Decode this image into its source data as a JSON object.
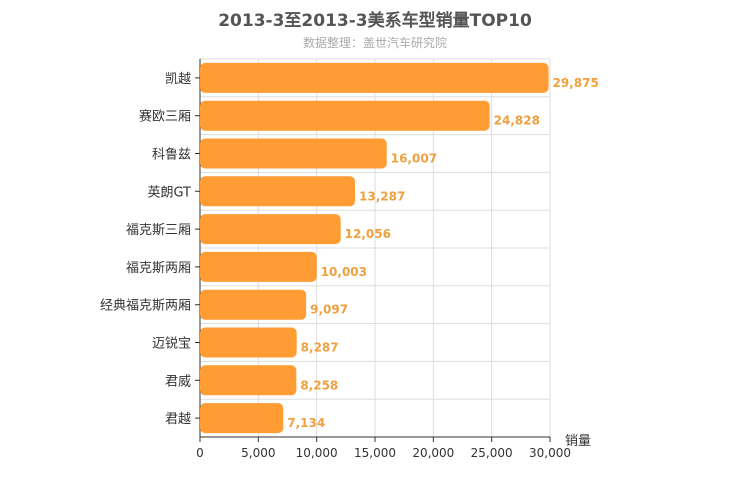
{
  "chart_data": {
    "type": "bar",
    "orientation": "horizontal",
    "title": "2013-3至2013-3美系车型销量TOP10",
    "subtitle": "数据整理：盖世汽车研究院",
    "xlabel": "销量",
    "ylabel": "",
    "xlim": [
      0,
      30000
    ],
    "xticks": [
      "0",
      "5,000",
      "10,000",
      "15,000",
      "20,000",
      "25,000",
      "30,000"
    ],
    "grid": true,
    "bar_color": "#ff9c33",
    "label_color": "#f0a040",
    "categories": [
      "凯越",
      "赛欧三厢",
      "科鲁兹",
      "英朗GT",
      "福克斯三厢",
      "福克斯两厢",
      "经典福克斯两厢",
      "迈锐宝",
      "君威",
      "君越"
    ],
    "values": [
      29875,
      24828,
      16007,
      13287,
      12056,
      10003,
      9097,
      8287,
      8258,
      7134
    ],
    "value_labels": [
      "29,875",
      "24,828",
      "16,007",
      "13,287",
      "12,056",
      "10,003",
      "9,097",
      "8,287",
      "8,258",
      "7,134"
    ]
  }
}
